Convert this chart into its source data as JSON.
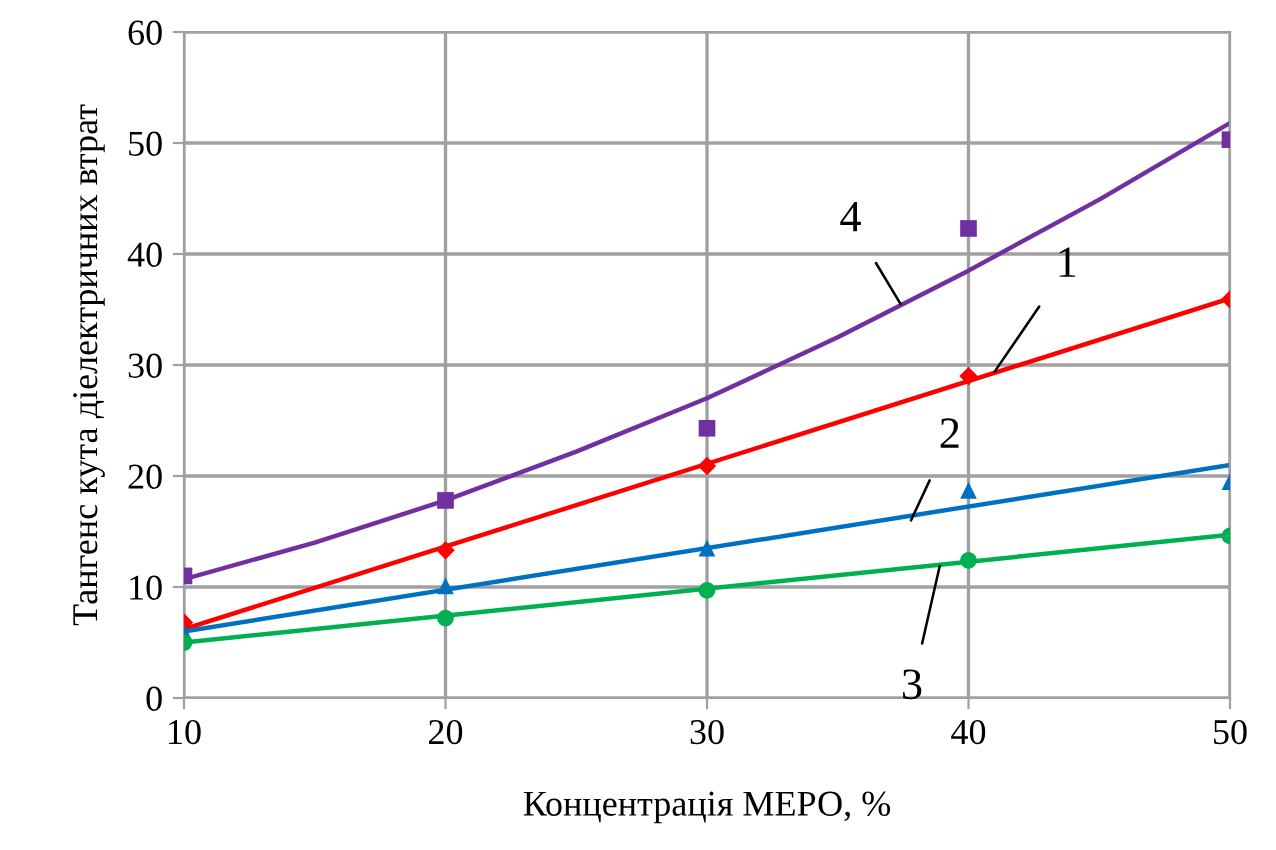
{
  "chart_data": {
    "type": "scatter",
    "xlabel": "Концентрація МЕРО, %",
    "ylabel": "Тангенс кута діелектричних втрат",
    "xlim": [
      10,
      50
    ],
    "xticks": [
      10,
      20,
      30,
      40,
      50
    ],
    "ylim": [
      0,
      60
    ],
    "yticks": [
      0,
      10,
      20,
      30,
      40,
      50,
      60
    ],
    "grid": true,
    "legend": false,
    "series": [
      {
        "marker": "square",
        "color": "#7030a0",
        "x": [
          10,
          20,
          30,
          40,
          50
        ],
        "values": [
          11.0,
          17.8,
          24.3,
          42.3,
          50.3
        ]
      },
      {
        "marker": "diamond",
        "color": "#ff0000",
        "x": [
          10,
          20,
          30,
          40,
          50
        ],
        "values": [
          6.8,
          13.3,
          20.9,
          29.0,
          35.9
        ]
      },
      {
        "marker": "triangle",
        "color": "#0070c0",
        "x": [
          10,
          20,
          30,
          40,
          50
        ],
        "values": [
          5.9,
          10.1,
          13.5,
          18.7,
          19.5
        ]
      },
      {
        "marker": "circle",
        "color": "#00b050",
        "x": [
          10,
          20,
          30,
          40,
          50
        ],
        "values": [
          5.0,
          7.2,
          9.7,
          12.4,
          14.6
        ]
      },
      {
        "type": "line",
        "marker": "none",
        "color": "#7030a0",
        "x": [
          10,
          15,
          20,
          25,
          30,
          35,
          40,
          45,
          50
        ],
        "values": [
          10.7,
          14.0,
          17.8,
          22.2,
          27.0,
          32.5,
          38.5,
          44.9,
          51.8
        ]
      },
      {
        "type": "line",
        "marker": "none",
        "color": "#ff0000",
        "x": [
          10,
          50
        ],
        "values": [
          6.2,
          36.0
        ]
      },
      {
        "type": "line",
        "marker": "none",
        "color": "#0070c0",
        "x": [
          10,
          50
        ],
        "values": [
          6.0,
          21.0
        ]
      },
      {
        "type": "line",
        "marker": "none",
        "color": "#00b050",
        "x": [
          10,
          50
        ],
        "values": [
          5.0,
          14.7
        ]
      }
    ],
    "annotations": [
      {
        "text": "4",
        "x": 37.4,
        "y": 35.5
      },
      {
        "text": "1",
        "x": 41.0,
        "y": 29.4
      },
      {
        "text": "2",
        "x": 37.8,
        "y": 16.0
      },
      {
        "text": "3",
        "x": 38.9,
        "y": 11.9
      }
    ]
  }
}
